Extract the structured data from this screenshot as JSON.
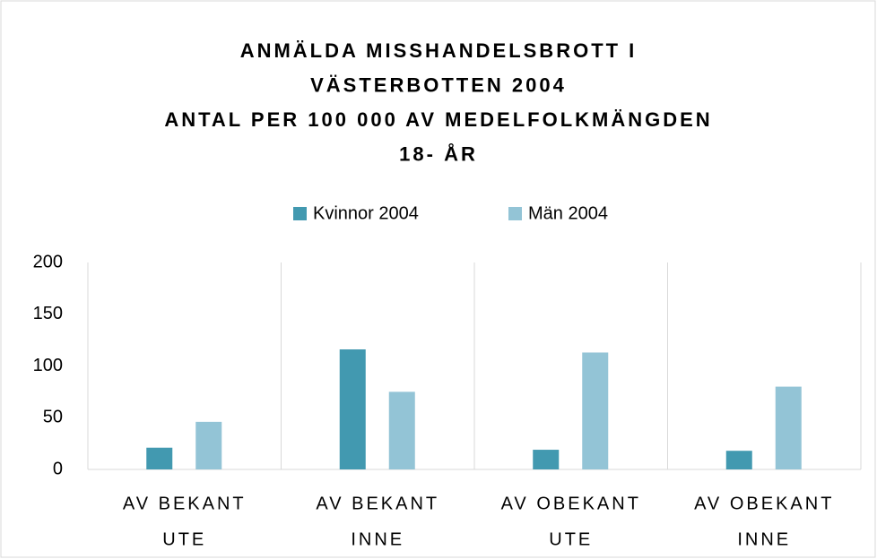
{
  "chart_data": {
    "type": "bar",
    "title": [
      "ANMÄLDA MISSHANDELSBROTT I",
      "VÄSTERBOTTEN 2004",
      "ANTAL PER 100 000 AV MEDELFOLKMÄNGDEN",
      "18- ÅR"
    ],
    "categories": [
      [
        "AV BEKANT",
        "UTE"
      ],
      [
        "AV BEKANT",
        "INNE"
      ],
      [
        "AV OBEKANT",
        "UTE"
      ],
      [
        "AV OBEKANT",
        "INNE"
      ]
    ],
    "series": [
      {
        "name": "Kvinnor 2004",
        "color": "#4299b0",
        "values": [
          21,
          116,
          19,
          18
        ]
      },
      {
        "name": "Män 2004",
        "color": "#93c4d6",
        "values": [
          46,
          75,
          113,
          80
        ]
      }
    ],
    "ylim": [
      0,
      200
    ],
    "yticks": [
      0,
      50,
      100,
      150,
      200
    ],
    "grid": false,
    "legend": "top"
  }
}
